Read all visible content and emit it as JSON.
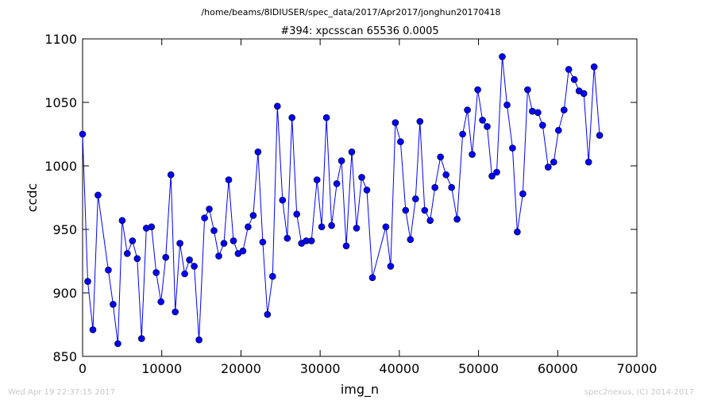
{
  "header": {
    "path": "/home/beams/8IDIUSER/spec_data/2017/Apr2017/jonghun20170418",
    "title": "#394: xpcsscan 65536 0.0005"
  },
  "footer": {
    "timestamp": "Wed Apr 19 22:37:15 2017",
    "credit": "spec2nexus, (C) 2014-2017"
  },
  "chart_data": {
    "type": "line",
    "title": "#394: xpcsscan 65536 0.0005",
    "xlabel": "img_n",
    "ylabel": "ccdc",
    "xlim": [
      0,
      70000
    ],
    "ylim": [
      850,
      1100
    ],
    "xticks": [
      "0",
      "10000",
      "20000",
      "30000",
      "40000",
      "50000",
      "60000",
      "70000"
    ],
    "yticks": [
      "850",
      "900",
      "950",
      "1000",
      "1050",
      "1100"
    ],
    "grid": false,
    "color": "#0000ff",
    "marker": "circle",
    "series": [
      {
        "x": [
          0,
          650,
          1300,
          1950,
          3250,
          3850,
          4450,
          5000,
          5650,
          6300,
          6900,
          7450,
          8050,
          8700,
          9300,
          9900,
          10500,
          11150,
          11700,
          12300,
          12900,
          13500,
          14100,
          14700,
          15400,
          16000,
          16600,
          17200,
          17850,
          18450,
          19050,
          19650,
          20250,
          20900,
          21550,
          22150,
          22750,
          23350,
          24000,
          24600,
          25250,
          25850,
          26450,
          27050,
          27650,
          28250,
          28900,
          29600,
          30200,
          30800,
          31450,
          32100,
          32700,
          33300,
          34000,
          34600,
          35250,
          35900,
          36600,
          38300,
          38900,
          39500,
          40150,
          40800,
          41400,
          42050,
          42600,
          43200,
          43900,
          44500,
          45200,
          45900,
          46600,
          47300,
          48000,
          48600,
          49200,
          49900,
          50500,
          51100,
          51700,
          52300,
          53000,
          53600,
          54300,
          54900,
          55600,
          56200,
          56800,
          57500,
          58100,
          58800,
          59500,
          60100,
          60800,
          61400,
          62100,
          62700,
          63300,
          63900,
          64600,
          65300
        ],
        "y": [
          1025,
          909,
          871,
          977,
          918,
          891,
          860,
          957,
          931,
          941,
          927,
          864,
          951,
          952,
          916,
          893,
          928,
          993,
          885,
          939,
          915,
          926,
          921,
          863,
          959,
          966,
          949,
          929,
          939,
          989,
          941,
          931,
          933,
          952,
          961,
          1011,
          940,
          883,
          913,
          1047,
          973,
          943,
          1038,
          962,
          939,
          941,
          941,
          989,
          952,
          1038,
          953,
          986,
          1004,
          937,
          1011,
          951,
          991,
          981,
          912,
          952,
          921,
          1034,
          1019,
          965,
          942,
          974,
          1035,
          965,
          957,
          983,
          1007,
          993,
          983,
          958,
          1025,
          1044,
          1009,
          1060,
          1036,
          1031,
          992,
          995,
          1086,
          1048,
          1014,
          948,
          978,
          1060,
          1043,
          1042,
          1032,
          999,
          1003,
          1028,
          1044,
          1076,
          1068,
          1059,
          1057,
          1003,
          1078,
          1024
        ]
      }
    ]
  }
}
